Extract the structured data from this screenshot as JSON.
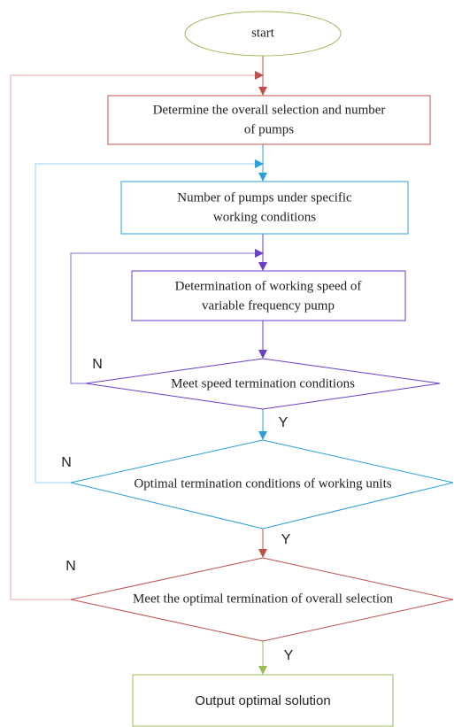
{
  "nodes": [
    {
      "label": [
        "start"
      ]
    },
    {
      "label": [
        "Determine the overall selection and number",
        "of pumps"
      ]
    },
    {
      "label": [
        "Number of pumps under specific",
        "working conditions"
      ]
    },
    {
      "label": [
        "Determination of working speed of",
        "variable frequency pump"
      ]
    },
    {
      "label": [
        "Meet speed termination conditions"
      ]
    },
    {
      "label": [
        "Optimal termination conditions of working units"
      ]
    },
    {
      "label": [
        "Meet the optimal termination of overall selection"
      ]
    },
    {
      "label": [
        "Output optimal solution"
      ]
    }
  ],
  "edge_labels": [
    "N",
    "Y",
    "N",
    "Y",
    "N",
    "Y"
  ]
}
